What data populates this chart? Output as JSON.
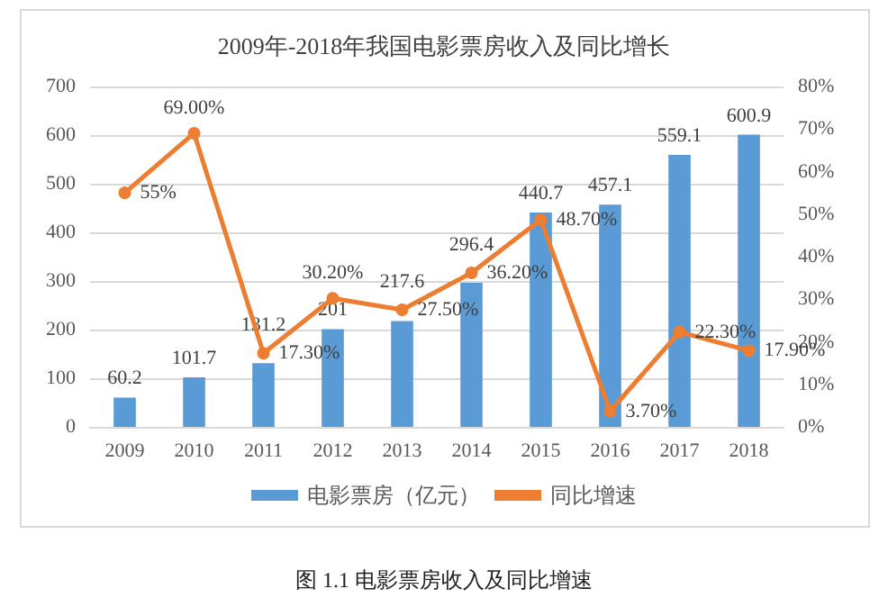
{
  "chart_data": {
    "type": "bar",
    "title": "2009年-2018年我国电影票房收入及同比增长",
    "categories": [
      "2009",
      "2010",
      "2011",
      "2012",
      "2013",
      "2014",
      "2015",
      "2016",
      "2017",
      "2018"
    ],
    "series": [
      {
        "name": "电影票房（亿元）",
        "type": "bar",
        "color": "#5b9bd5",
        "values": [
          60.2,
          101.7,
          131.2,
          201,
          217.6,
          296.4,
          440.7,
          457.1,
          559.1,
          600.9
        ],
        "value_labels": [
          "60.2",
          "101.7",
          "131.2",
          "201",
          "217.6",
          "296.4",
          "440.7",
          "457.1",
          "559.1",
          "600.9"
        ]
      },
      {
        "name": "同比增速",
        "type": "line",
        "axis": "y2",
        "color": "#ed7d31",
        "values": [
          55,
          69,
          17.3,
          30.2,
          27.5,
          36.2,
          48.7,
          3.7,
          22.3,
          17.9
        ],
        "value_labels": [
          "55%",
          "69.00%",
          "17.30%",
          "30.20%",
          "27.50%",
          "36.20%",
          "48.70%",
          "3.70%",
          "22.30%",
          "17.90%"
        ]
      }
    ],
    "ylim": [
      0,
      700
    ],
    "yticks": [
      0,
      100,
      200,
      300,
      400,
      500,
      600,
      700
    ],
    "y2lim": [
      0,
      80
    ],
    "y2ticks": [
      {
        "value": 0,
        "label": "0%"
      },
      {
        "value": 10,
        "label": "10%"
      },
      {
        "value": 20,
        "label": "20%"
      },
      {
        "value": 30,
        "label": "30%"
      },
      {
        "value": 40,
        "label": "40%"
      },
      {
        "value": 50,
        "label": "50%"
      },
      {
        "value": 60,
        "label": "60%"
      },
      {
        "value": 70,
        "label": "70%"
      },
      {
        "value": 80,
        "label": "80%"
      }
    ],
    "grid": "y",
    "legend": "bottom",
    "marker": "circle",
    "annotations": [
      "图 1.1 电影票房收入及同比增速"
    ]
  }
}
